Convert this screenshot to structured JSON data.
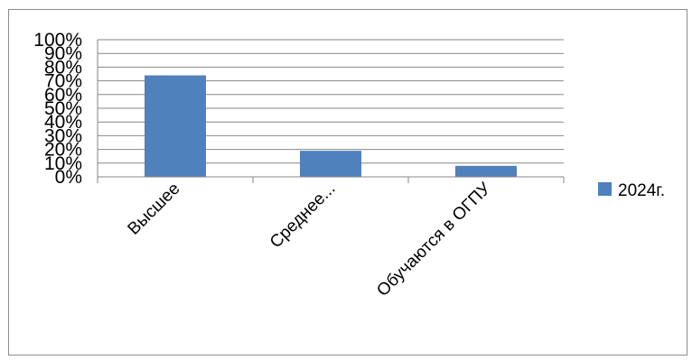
{
  "chart_data": {
    "type": "bar",
    "title": "",
    "xlabel": "",
    "ylabel": "",
    "categories": [
      "Высшее",
      "Среднее...",
      "Обучаются в ОГПУ"
    ],
    "series": [
      {
        "name": "2024г.",
        "values": [
          74,
          19,
          8
        ],
        "color": "#4f81bd"
      }
    ],
    "ylim": [
      0,
      100
    ],
    "y_ticks": [
      0,
      10,
      20,
      30,
      40,
      50,
      60,
      70,
      80,
      90,
      100
    ],
    "y_tick_format": "percent",
    "grid": true,
    "legend_position": "right"
  }
}
